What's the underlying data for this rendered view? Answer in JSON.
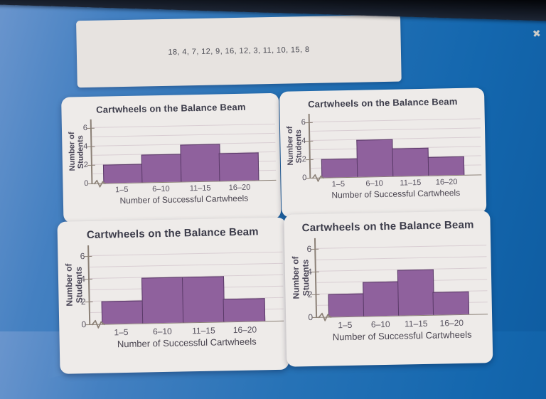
{
  "window": {
    "close_icon": "✖"
  },
  "prompt_panel": {
    "data_list": "18, 4, 7, 12, 9, 16, 12, 3, 11, 10, 15, 8"
  },
  "colors": {
    "background_blue": "#2672b6",
    "bezel": "#0b0f18",
    "card_background": "#eeebe9",
    "bar_fill": "#8f619d",
    "bar_border": "#5a3a68",
    "gridline": "#d9ced3",
    "axis": "#8b8076",
    "title_text": "#3c3c4a"
  },
  "chart_data": [
    {
      "type": "bar",
      "position": "top-left",
      "title": "Cartwheels on the Balance Beam",
      "ylabel": "Number of Students",
      "xlabel": "Number of Successful Cartwheels",
      "categories": [
        "1–5",
        "6–10",
        "11–15",
        "16–20"
      ],
      "values": [
        2,
        3,
        4,
        3
      ],
      "ylim": [
        0,
        6
      ],
      "yticks": [
        0,
        2,
        4,
        6
      ],
      "grid": true,
      "legend": "none"
    },
    {
      "type": "bar",
      "position": "top-right",
      "title": "Cartwheels on the Balance Beam",
      "ylabel": "Number of Students",
      "xlabel": "Number of Successful Cartwheels",
      "categories": [
        "1–5",
        "6–10",
        "11–15",
        "16–20"
      ],
      "values": [
        2,
        4,
        3,
        2
      ],
      "ylim": [
        0,
        6
      ],
      "yticks": [
        0,
        2,
        4,
        6
      ],
      "grid": true,
      "legend": "none"
    },
    {
      "type": "bar",
      "position": "bottom-left",
      "title": "Cartwheels on the Balance Beam",
      "ylabel": "Number of Students",
      "xlabel": "Number of Successful Cartwheels",
      "categories": [
        "1–5",
        "6–10",
        "11–15",
        "16–20"
      ],
      "values": [
        2,
        4,
        4,
        2
      ],
      "ylim": [
        0,
        6
      ],
      "yticks": [
        0,
        2,
        4,
        6
      ],
      "grid": true,
      "legend": "none"
    },
    {
      "type": "bar",
      "position": "bottom-right",
      "title": "Cartwheels on the Balance Beam",
      "ylabel": "Number of Students",
      "xlabel": "Number of Successful Cartwheels",
      "categories": [
        "1–5",
        "6–10",
        "11–15",
        "16–20"
      ],
      "values": [
        2,
        3,
        4,
        2
      ],
      "ylim": [
        0,
        6
      ],
      "yticks": [
        0,
        2,
        4,
        6
      ],
      "grid": true,
      "legend": "none"
    }
  ]
}
